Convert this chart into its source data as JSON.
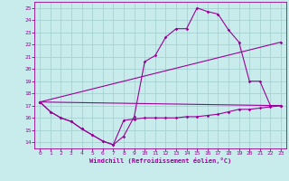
{
  "xlabel": "Windchill (Refroidissement éolien,°C)",
  "xlim": [
    -0.5,
    23.5
  ],
  "ylim": [
    13.5,
    25.5
  ],
  "xticks": [
    0,
    1,
    2,
    3,
    4,
    5,
    6,
    7,
    8,
    9,
    10,
    11,
    12,
    13,
    14,
    15,
    16,
    17,
    18,
    19,
    20,
    21,
    22,
    23
  ],
  "yticks": [
    14,
    15,
    16,
    17,
    18,
    19,
    20,
    21,
    22,
    23,
    24,
    25
  ],
  "bg_color": "#c8ecec",
  "grid_color": "#a0cccc",
  "line_color": "#990099",
  "curve1_x": [
    0,
    1,
    2,
    3,
    4,
    5,
    6,
    7,
    8,
    9,
    10,
    11,
    12,
    13,
    14,
    15,
    16,
    17,
    18,
    19,
    20,
    21,
    22,
    23
  ],
  "curve1_y": [
    17.3,
    16.5,
    16.0,
    15.7,
    15.1,
    14.6,
    14.1,
    13.8,
    14.5,
    16.1,
    20.6,
    21.1,
    22.6,
    23.3,
    23.3,
    25.0,
    24.7,
    24.5,
    23.2,
    22.2,
    19.0,
    19.0,
    17.0,
    17.0
  ],
  "curve2_x": [
    0,
    1,
    2,
    3,
    4,
    5,
    6,
    7,
    8,
    9,
    10,
    11,
    12,
    13,
    14,
    15,
    16,
    17,
    18,
    19,
    20,
    21,
    22,
    23
  ],
  "curve2_y": [
    17.3,
    16.5,
    16.0,
    15.7,
    15.1,
    14.6,
    14.1,
    13.8,
    15.8,
    15.9,
    16.0,
    16.0,
    16.0,
    16.0,
    16.1,
    16.1,
    16.2,
    16.3,
    16.5,
    16.7,
    16.7,
    16.8,
    16.9,
    17.0
  ],
  "curve3_x": [
    0,
    23
  ],
  "curve3_y": [
    17.3,
    22.2
  ],
  "curve4_x": [
    0,
    23
  ],
  "curve4_y": [
    17.3,
    17.0
  ],
  "marker": "D",
  "markersize": 1.8,
  "linewidth": 0.8
}
